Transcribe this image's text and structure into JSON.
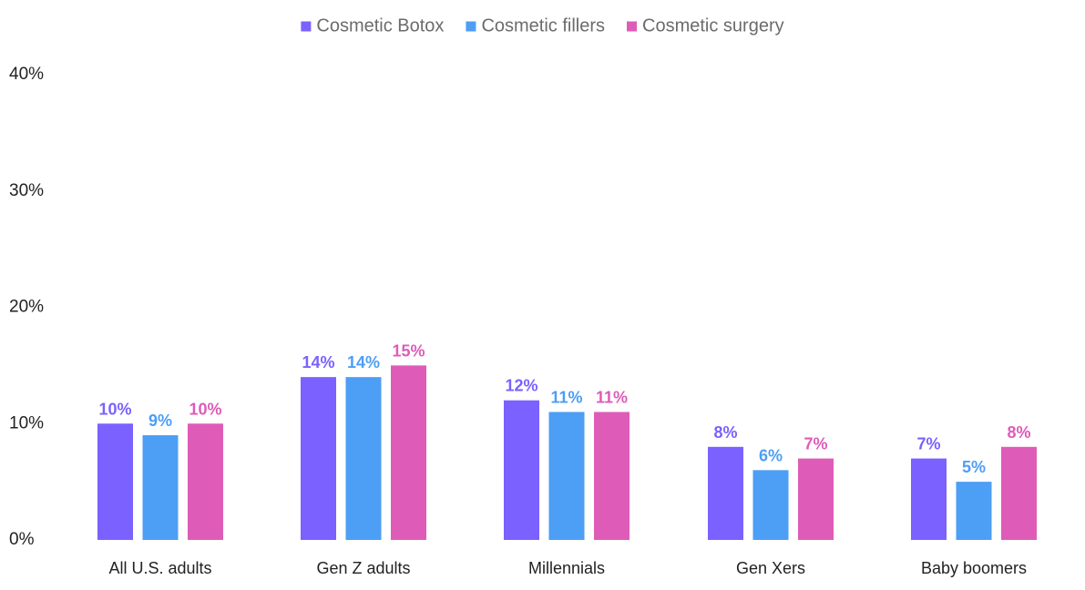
{
  "chart_data": {
    "type": "bar",
    "categories": [
      "All U.S. adults",
      "Gen Z adults",
      "Millennials",
      "Gen Xers",
      "Baby boomers"
    ],
    "series": [
      {
        "name": "Cosmetic Botox",
        "color": "#7b61ff",
        "values": [
          10,
          14,
          12,
          8,
          7
        ],
        "labels": [
          "10%",
          "14%",
          "12%",
          "8%",
          "7%"
        ]
      },
      {
        "name": "Cosmetic fillers",
        "color": "#4d9ef5",
        "values": [
          9,
          14,
          11,
          6,
          5
        ],
        "labels": [
          "9%",
          "14%",
          "11%",
          "6%",
          "5%"
        ]
      },
      {
        "name": "Cosmetic surgery",
        "color": "#de5cb8",
        "values": [
          10,
          15,
          11,
          7,
          8
        ],
        "labels": [
          "10%",
          "15%",
          "11%",
          "7%",
          "8%"
        ]
      }
    ],
    "ylim": [
      0,
      40
    ],
    "yticks": [
      0,
      10,
      20,
      30,
      40
    ],
    "ytick_labels": [
      "0%",
      "10%",
      "20%",
      "30%",
      "40%"
    ],
    "legend_position": "top-center",
    "grid": false
  }
}
